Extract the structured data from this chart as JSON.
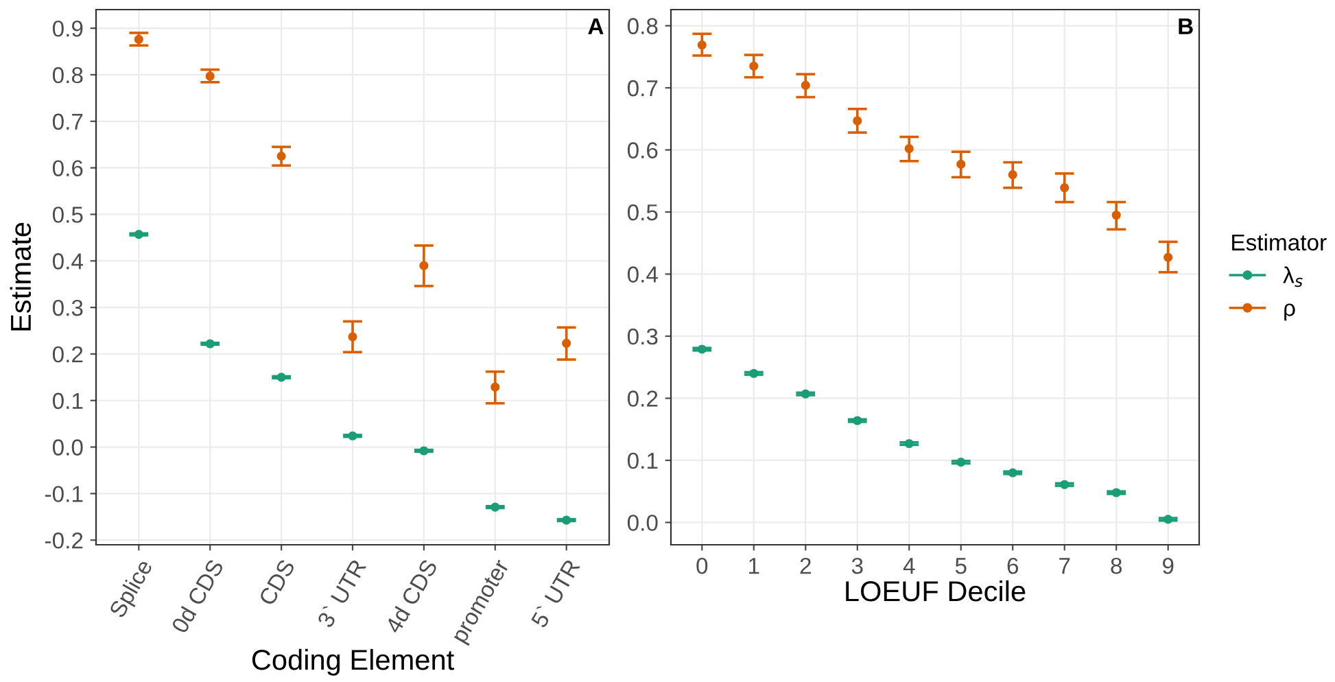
{
  "chart_data": [
    {
      "type": "scatter",
      "xlabel": "Coding Element",
      "ylabel": "Estimate",
      "annotations": [
        "A"
      ],
      "categories": [
        "Splice",
        "0d CDS",
        "CDS",
        "3` UTR",
        "4d CDS",
        "promoter",
        "5` UTR"
      ],
      "ylim": [
        -0.21,
        0.94
      ],
      "yticks": [
        {
          "value": -0.2,
          "label": "-0.2"
        },
        {
          "value": -0.1,
          "label": "-0.1"
        },
        {
          "value": 0,
          "label": "0.0"
        },
        0.1,
        0.2,
        0.3,
        0.4,
        0.5,
        0.6,
        0.7,
        0.8,
        0.9
      ],
      "grid": true,
      "legend": false,
      "marker": "circle",
      "series": [
        {
          "color": "#1b9e77",
          "values": [
            0.457,
            0.222,
            0.15,
            0.024,
            -0.008,
            -0.129,
            -0.157
          ],
          "errors": [
            0.002,
            0.002,
            0.002,
            0.002,
            0.002,
            0.002,
            0.002
          ]
        },
        {
          "color": "#d95f02",
          "values": [
            0.876,
            0.797,
            0.625,
            0.237,
            0.39,
            0.129,
            0.223
          ],
          "errors": [
            [
              0.863,
              0.89
            ],
            [
              0.784,
              0.811
            ],
            [
              0.605,
              0.645
            ],
            [
              0.204,
              0.27
            ],
            [
              0.346,
              0.433
            ],
            [
              0.094,
              0.162
            ],
            [
              0.188,
              0.257
            ]
          ]
        }
      ]
    },
    {
      "type": "scatter",
      "xlabel": "LOEUF Decile",
      "annotations": [
        "B"
      ],
      "legend_title": "Estimator",
      "categories": [
        "0",
        "1",
        "2",
        "3",
        "4",
        "5",
        "6",
        "7",
        "8",
        "9"
      ],
      "ylim": [
        -0.036,
        0.826
      ],
      "yticks": [
        {
          "value": 0,
          "label": "0.0"
        },
        0.1,
        0.2,
        0.3,
        0.4,
        0.5,
        0.6,
        0.7,
        0.8
      ],
      "grid": true,
      "legend": "right",
      "marker": "circle",
      "series": [
        {
          "name": "λ$_{s}$",
          "color": "#1b9e77",
          "values": [
            0.279,
            0.24,
            0.207,
            0.164,
            0.127,
            0.097,
            0.08,
            0.061,
            0.048,
            0.005
          ],
          "errors": [
            0.002,
            0.002,
            0.002,
            0.002,
            0.002,
            0.002,
            0.002,
            0.002,
            0.002,
            0.002
          ]
        },
        {
          "name": "ρ",
          "color": "#d95f02",
          "values": [
            0.769,
            0.735,
            0.704,
            0.647,
            0.602,
            0.577,
            0.56,
            0.539,
            0.495,
            0.427
          ],
          "errors": [
            [
              0.752,
              0.787
            ],
            [
              0.717,
              0.753
            ],
            [
              0.685,
              0.722
            ],
            [
              0.628,
              0.666
            ],
            [
              0.582,
              0.621
            ],
            [
              0.556,
              0.597
            ],
            [
              0.539,
              0.58
            ],
            [
              0.516,
              0.562
            ],
            [
              0.472,
              0.516
            ],
            [
              0.403,
              0.452
            ]
          ]
        }
      ]
    }
  ]
}
